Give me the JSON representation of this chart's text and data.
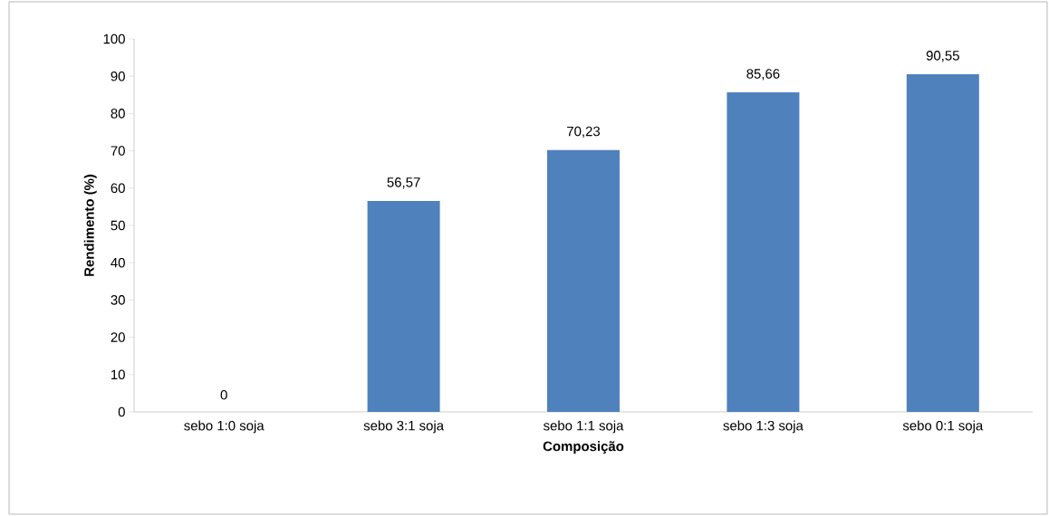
{
  "chart_data": {
    "type": "bar",
    "xlabel": "Composição",
    "ylabel": "Rendimento (%)",
    "categories": [
      "sebo 1:0 soja",
      "sebo 3:1 soja",
      "sebo 1:1 soja",
      "sebo 1:3 soja",
      "sebo 0:1 soja"
    ],
    "values": [
      0,
      56.57,
      70.23,
      85.66,
      90.55
    ],
    "value_labels": [
      "0",
      "56,57",
      "70,23",
      "85,66",
      "90,55"
    ],
    "color": "#4f81bd",
    "ylim": [
      0,
      100
    ],
    "yticks": [
      0,
      10,
      20,
      30,
      40,
      50,
      60,
      70,
      80,
      90,
      100
    ],
    "grid": false
  }
}
